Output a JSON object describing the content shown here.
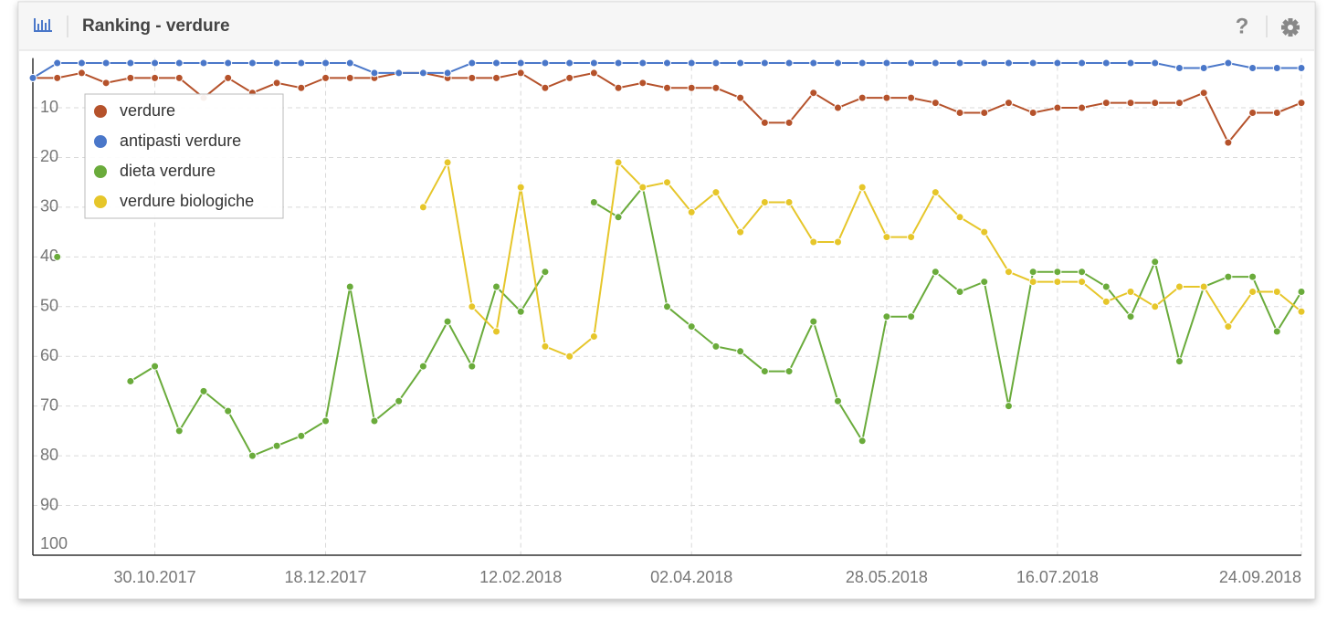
{
  "header": {
    "title": "Ranking - verdure",
    "help": "?"
  },
  "chart_data": {
    "type": "line",
    "categories": [
      null,
      null,
      null,
      null,
      null,
      "30.10.2017",
      null,
      null,
      null,
      null,
      null,
      null,
      "18.12.2017",
      null,
      null,
      null,
      null,
      null,
      null,
      null,
      "12.02.2018",
      null,
      null,
      null,
      null,
      null,
      null,
      "02.04.2018",
      null,
      null,
      null,
      null,
      null,
      null,
      null,
      "28.05.2018",
      null,
      null,
      null,
      null,
      null,
      null,
      "16.07.2018",
      null,
      null,
      null,
      null,
      null,
      null,
      null,
      null,
      null,
      "24.09.2018"
    ],
    "series": [
      {
        "name": "verdure",
        "color": "#b5522b",
        "values": [
          4,
          4,
          3,
          5,
          4,
          4,
          4,
          8,
          4,
          7,
          5,
          6,
          4,
          4,
          4,
          3,
          3,
          4,
          4,
          4,
          3,
          6,
          4,
          3,
          6,
          5,
          6,
          6,
          6,
          8,
          13,
          13,
          7,
          10,
          8,
          8,
          8,
          9,
          11,
          11,
          9,
          11,
          10,
          10,
          9,
          9,
          9,
          9,
          7,
          17,
          11,
          11,
          9
        ]
      },
      {
        "name": "antipasti verdure",
        "color": "#4a77c9",
        "values": [
          4,
          1,
          1,
          1,
          1,
          1,
          1,
          1,
          1,
          1,
          1,
          1,
          1,
          1,
          3,
          3,
          3,
          3,
          1,
          1,
          1,
          1,
          1,
          1,
          1,
          1,
          1,
          1,
          1,
          1,
          1,
          1,
          1,
          1,
          1,
          1,
          1,
          1,
          1,
          1,
          1,
          1,
          1,
          1,
          1,
          1,
          1,
          2,
          2,
          1,
          2,
          2,
          2
        ]
      },
      {
        "name": "dieta verdure",
        "color": "#6aab3b",
        "values": [
          null,
          40,
          null,
          null,
          65,
          62,
          75,
          67,
          71,
          80,
          78,
          76,
          73,
          46,
          73,
          69,
          62,
          53,
          62,
          46,
          51,
          43,
          null,
          29,
          32,
          26,
          50,
          54,
          58,
          59,
          63,
          63,
          53,
          69,
          77,
          52,
          52,
          43,
          47,
          45,
          70,
          43,
          43,
          43,
          46,
          52,
          41,
          61,
          46,
          44,
          44,
          55,
          47
        ]
      },
      {
        "name": "verdure biologiche",
        "color": "#e6c62a",
        "values": [
          null,
          null,
          null,
          null,
          null,
          null,
          null,
          null,
          null,
          null,
          null,
          null,
          null,
          null,
          null,
          null,
          30,
          21,
          50,
          55,
          26,
          58,
          60,
          56,
          21,
          26,
          25,
          31,
          27,
          35,
          29,
          29,
          37,
          37,
          26,
          36,
          36,
          27,
          32,
          35,
          43,
          45,
          45,
          45,
          49,
          47,
          50,
          46,
          46,
          54,
          47,
          47,
          51
        ]
      }
    ],
    "ylim": [
      0,
      100
    ],
    "yticks": [
      10,
      20,
      30,
      40,
      50,
      60,
      70,
      80,
      90,
      100
    ],
    "inverted_y": true,
    "grid": true,
    "legend": "top-left"
  }
}
